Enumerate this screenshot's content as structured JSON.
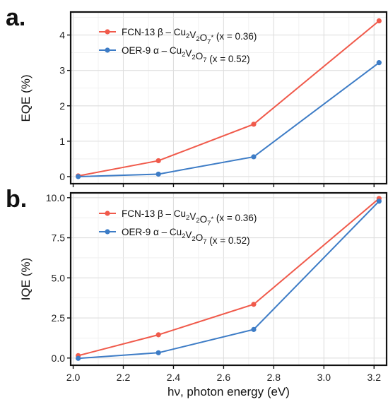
{
  "chart_data": [
    {
      "type": "line",
      "panel_label": "a.",
      "ylabel": "EQE (%)",
      "xlabel": "",
      "ylim": [
        -0.2,
        4.65
      ],
      "xlim": [
        1.99,
        3.25
      ],
      "yticks": [
        0,
        1,
        2,
        3,
        4
      ],
      "yticklabels": [
        "0",
        "1",
        "2",
        "3",
        "4"
      ],
      "xticks": [
        2.0,
        2.2,
        2.4,
        2.6,
        2.8,
        3.0,
        3.2
      ],
      "grid": true,
      "legend_position": "top-left",
      "series": [
        {
          "name": "FCN-13 β – Cu2V2O7* (x = 0.36)",
          "legend": {
            "sample": "FCN-13",
            "phase": "β – Cu",
            "sub1": "2",
            "mid": "V",
            "sub2": "2",
            "o": "O",
            "sub3": "7",
            "star": "*",
            "tail": "(x = 0.36)"
          },
          "color": "#f05a4b",
          "x": [
            2.02,
            2.34,
            2.72,
            3.22
          ],
          "y": [
            0.02,
            0.45,
            1.48,
            4.4
          ]
        },
        {
          "name": "OER-9 α – Cu2V2O7 (x = 0.52)",
          "legend": {
            "sample": "OER-9",
            "phase": "α – Cu",
            "sub1": "2",
            "mid": "V",
            "sub2": "2",
            "o": "O",
            "sub3": "7",
            "star": "",
            "tail": "(x = 0.52)"
          },
          "color": "#3d7cc6",
          "x": [
            2.02,
            2.34,
            2.72,
            3.22
          ],
          "y": [
            0.0,
            0.07,
            0.56,
            3.22
          ]
        }
      ]
    },
    {
      "type": "line",
      "panel_label": "b.",
      "ylabel": "IQE (%)",
      "xlabel": "hν, photon energy (eV)",
      "ylim": [
        -0.45,
        10.3
      ],
      "xlim": [
        1.99,
        3.25
      ],
      "yticks": [
        0,
        2.5,
        5,
        7.5,
        10
      ],
      "yticklabels": [
        "0.0",
        "2.5",
        "5.0",
        "7.5",
        "10.0"
      ],
      "xticks": [
        2.0,
        2.2,
        2.4,
        2.6,
        2.8,
        3.0,
        3.2
      ],
      "xticklabels": [
        "2.0",
        "2.2",
        "2.4",
        "2.6",
        "2.8",
        "3.0",
        "3.2"
      ],
      "grid": true,
      "legend_position": "top-left",
      "series": [
        {
          "name": "FCN-13 β – Cu2V2O7* (x = 0.36)",
          "legend": {
            "sample": "FCN-13",
            "phase": "β – Cu",
            "sub1": "2",
            "mid": "V",
            "sub2": "2",
            "o": "O",
            "sub3": "7",
            "star": "*",
            "tail": "(x = 0.36)"
          },
          "color": "#f05a4b",
          "x": [
            2.02,
            2.34,
            2.72,
            3.22
          ],
          "y": [
            0.15,
            1.45,
            3.35,
            9.95
          ]
        },
        {
          "name": "OER-9 α – Cu2V2O7 (x = 0.52)",
          "legend": {
            "sample": "OER-9",
            "phase": "α – Cu",
            "sub1": "2",
            "mid": "V",
            "sub2": "2",
            "o": "O",
            "sub3": "7",
            "star": "",
            "tail": "(x = 0.52)"
          },
          "color": "#3d7cc6",
          "x": [
            2.02,
            2.34,
            2.72,
            3.22
          ],
          "y": [
            -0.02,
            0.33,
            1.78,
            9.78
          ]
        }
      ]
    }
  ]
}
